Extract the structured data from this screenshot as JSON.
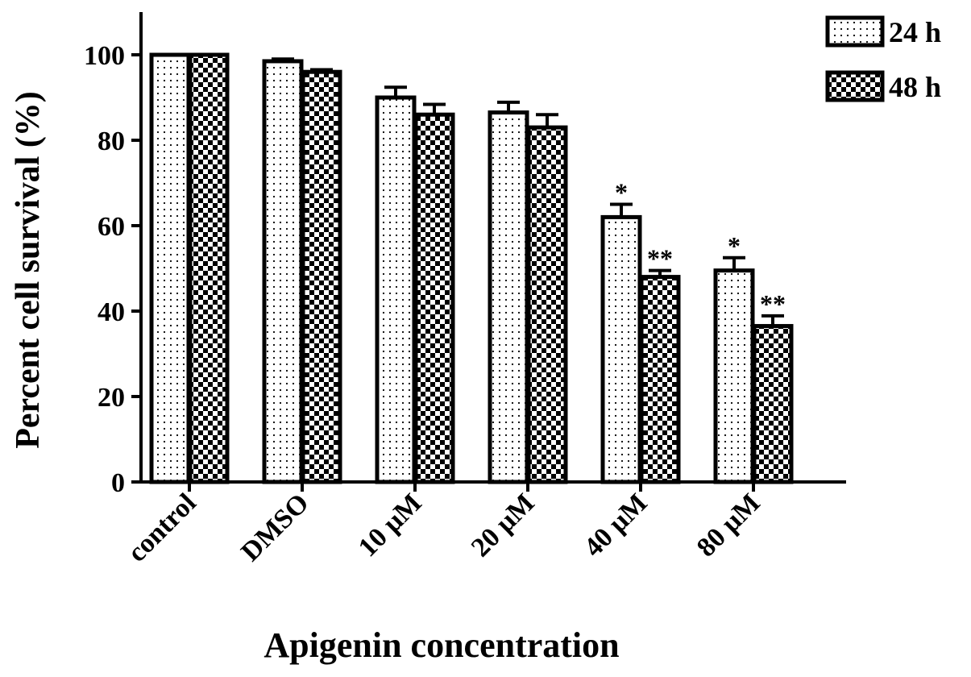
{
  "chart_data": {
    "type": "bar",
    "x_label": "Apigenin concentration",
    "y_label": "Percent cell survival (%)",
    "categories": [
      "control",
      "DMSO",
      "10 µM",
      "20 µM",
      "40 µM",
      "80 µM"
    ],
    "series": [
      {
        "name": "24 h",
        "color": "#000000",
        "pattern": "dots",
        "values": [
          100,
          98.5,
          90,
          86.5,
          62,
          49.5
        ],
        "errors": [
          0,
          0.5,
          2.4,
          2.4,
          3,
          3
        ],
        "labels": [
          null,
          null,
          null,
          null,
          "*",
          "*"
        ]
      },
      {
        "name": "48 h",
        "color": "#000000",
        "pattern": "checker",
        "values": [
          100,
          96,
          86,
          83,
          48,
          36.5
        ],
        "errors": [
          0,
          0.5,
          2.4,
          3,
          1.5,
          2.4
        ],
        "labels": [
          null,
          null,
          null,
          null,
          "**",
          "**"
        ]
      }
    ],
    "ylim": [
      0,
      110
    ],
    "yticks": [
      0,
      20,
      40,
      60,
      80,
      100
    ],
    "legend": "top-right"
  }
}
